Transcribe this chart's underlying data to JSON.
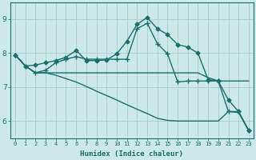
{
  "xlabel": "Humidex (Indice chaleur)",
  "bg_color": "#cce8e8",
  "grid_color": "#aacccc",
  "line_color": "#1a6e6e",
  "xlim": [
    -0.5,
    23.5
  ],
  "ylim": [
    5.5,
    9.5
  ],
  "yticks": [
    6,
    7,
    8,
    9
  ],
  "xticks": [
    0,
    1,
    2,
    3,
    4,
    5,
    6,
    7,
    8,
    9,
    10,
    11,
    12,
    13,
    14,
    15,
    16,
    17,
    18,
    19,
    20,
    21,
    22,
    23
  ],
  "series": [
    {
      "x": [
        0,
        1,
        2,
        3,
        4,
        5,
        6,
        7,
        8,
        9,
        10,
        11,
        12,
        13,
        14,
        15,
        16,
        17,
        18,
        19,
        20,
        21,
        22,
        23
      ],
      "y": [
        7.95,
        7.62,
        7.65,
        7.72,
        7.78,
        7.88,
        8.08,
        7.78,
        7.78,
        7.8,
        7.98,
        8.35,
        8.85,
        9.05,
        8.72,
        8.55,
        8.25,
        8.18,
        8.0,
        7.22,
        7.18,
        6.62,
        6.28,
        5.72
      ],
      "marker": "D",
      "markersize": 2.5,
      "linewidth": 1.0
    },
    {
      "x": [
        0,
        1,
        2,
        3,
        4,
        5,
        6,
        7,
        8,
        9,
        10,
        11,
        12,
        13,
        14,
        15,
        16,
        17,
        18,
        19,
        20,
        21,
        22,
        23
      ],
      "y": [
        7.95,
        7.62,
        7.42,
        7.5,
        7.72,
        7.82,
        7.9,
        7.82,
        7.82,
        7.82,
        7.82,
        7.82,
        8.72,
        8.88,
        8.28,
        7.98,
        7.15,
        7.18,
        7.18,
        7.18,
        7.18,
        6.28,
        6.28,
        5.72
      ],
      "marker": "+",
      "markersize": 4,
      "linewidth": 1.0
    },
    {
      "x": [
        0,
        1,
        2,
        3,
        4,
        5,
        6,
        7,
        8,
        9,
        10,
        11,
        12,
        13,
        14,
        15,
        16,
        17,
        18,
        19,
        20,
        21,
        22,
        23
      ],
      "y": [
        7.95,
        7.62,
        7.42,
        7.42,
        7.42,
        7.42,
        7.42,
        7.42,
        7.42,
        7.42,
        7.42,
        7.42,
        7.42,
        7.42,
        7.42,
        7.42,
        7.42,
        7.42,
        7.42,
        7.28,
        7.18,
        7.18,
        7.18,
        7.18
      ],
      "marker": null,
      "markersize": 0,
      "linewidth": 1.0
    },
    {
      "x": [
        0,
        1,
        2,
        3,
        4,
        5,
        6,
        7,
        8,
        9,
        10,
        11,
        12,
        13,
        14,
        15,
        16,
        17,
        18,
        19,
        20,
        21,
        22,
        23
      ],
      "y": [
        7.95,
        7.62,
        7.42,
        7.42,
        7.35,
        7.25,
        7.15,
        7.02,
        6.88,
        6.75,
        6.62,
        6.48,
        6.35,
        6.22,
        6.08,
        6.02,
        6.0,
        6.0,
        6.0,
        6.0,
        6.0,
        6.28,
        6.25,
        5.72
      ],
      "marker": null,
      "markersize": 0,
      "linewidth": 1.0
    }
  ]
}
